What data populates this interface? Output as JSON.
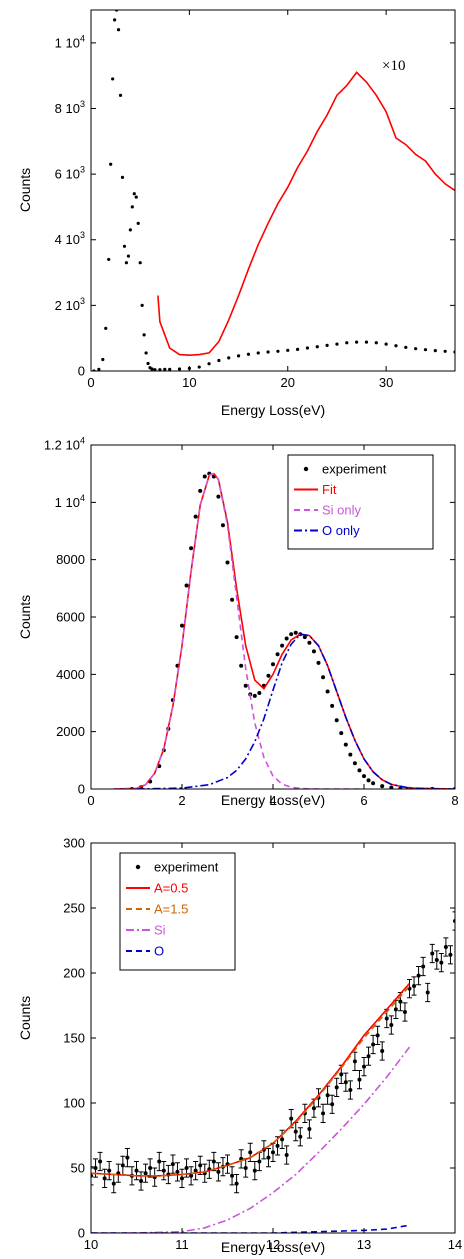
{
  "chart_data": [
    {
      "type": "line",
      "xlabel": "Energy Loss(eV)",
      "ylabel": "Counts",
      "xlim": [
        0,
        37
      ],
      "ylim": [
        0,
        11000
      ],
      "xticks": [
        "0",
        "10",
        "20",
        "30"
      ],
      "xtick_values": [
        0,
        10,
        20,
        30
      ],
      "yticks": [
        {
          "value": 0,
          "label": "0"
        },
        {
          "value": 2000,
          "label": "2 10",
          "exp": "3"
        },
        {
          "value": 4000,
          "label": "4 10",
          "exp": "3"
        },
        {
          "value": 6000,
          "label": "6 10",
          "exp": "3"
        },
        {
          "value": 8000,
          "label": "8 10",
          "exp": "3"
        },
        {
          "value": 10000,
          "label": "1 10",
          "exp": "4"
        }
      ],
      "annotation": "×10",
      "series": [
        {
          "style": "markers",
          "color": "#000000",
          "x": [
            0.3,
            0.8,
            1.2,
            1.5,
            1.8,
            2.0,
            2.2,
            2.4,
            2.6,
            2.8,
            3.0,
            3.2,
            3.4,
            3.6,
            3.8,
            4.0,
            4.2,
            4.4,
            4.6,
            4.8,
            5.0,
            5.2,
            5.4,
            5.6,
            5.8,
            6.0,
            6.2,
            6.5,
            7.0,
            7.5,
            8,
            9,
            10,
            11,
            12,
            13,
            14,
            15,
            16,
            17,
            18,
            19,
            20,
            21,
            22,
            23,
            24,
            25,
            26,
            27,
            28,
            29,
            30,
            31,
            32,
            33,
            34,
            35,
            36,
            37
          ],
          "y": [
            0,
            50,
            350,
            1300,
            3400,
            6300,
            8900,
            10700,
            11000,
            10400,
            8400,
            5900,
            3800,
            3300,
            3500,
            4300,
            5000,
            5400,
            5300,
            4500,
            3300,
            2000,
            1100,
            550,
            230,
            100,
            60,
            40,
            40,
            50,
            50,
            60,
            80,
            120,
            220,
            320,
            400,
            460,
            510,
            550,
            580,
            600,
            630,
            660,
            700,
            740,
            780,
            820,
            860,
            880,
            880,
            860,
            820,
            770,
            720,
            680,
            650,
            620,
            600,
            580
          ]
        },
        {
          "style": "line",
          "color": "#ff0000",
          "x": [
            6.8,
            7,
            8,
            9,
            10,
            11,
            12,
            13,
            14,
            15,
            16,
            17,
            18,
            19,
            20,
            21,
            22,
            23,
            24,
            25,
            26,
            27,
            28,
            29,
            30,
            31,
            32,
            33,
            34,
            35,
            36,
            37
          ],
          "y": [
            2300,
            1500,
            700,
            500,
            480,
            500,
            550,
            900,
            1550,
            2300,
            3100,
            3850,
            4500,
            5100,
            5600,
            6200,
            6700,
            7300,
            7800,
            8400,
            8700,
            9100,
            8800,
            8400,
            7900,
            7100,
            6900,
            6600,
            6400,
            6000,
            5700,
            5500
          ]
        }
      ]
    },
    {
      "type": "line",
      "xlabel": "Energy Loss(eV)",
      "ylabel": "Counts",
      "xlim": [
        0,
        8
      ],
      "ylim": [
        0,
        12000
      ],
      "xticks": [
        "0",
        "2",
        "4",
        "6",
        "8"
      ],
      "xtick_values": [
        0,
        2,
        4,
        6,
        8
      ],
      "yticks": [
        {
          "value": 0,
          "label": "0"
        },
        {
          "value": 2000,
          "label": "2000"
        },
        {
          "value": 4000,
          "label": "4000"
        },
        {
          "value": 6000,
          "label": "6000"
        },
        {
          "value": 8000,
          "label": "8000"
        },
        {
          "value": 10000,
          "label": "1 10",
          "exp": "4"
        },
        {
          "value": 12000,
          "label": "1.2 10",
          "exp": "4"
        }
      ],
      "legend": {
        "position": "top-right",
        "entries": [
          {
            "label": "experiment",
            "color": "#000000",
            "style": "dot"
          },
          {
            "label": "Fit",
            "color": "#ff0000",
            "style": "solid"
          },
          {
            "label": "Si only",
            "color": "#cc55dd",
            "style": "dash"
          },
          {
            "label": "O only",
            "color": "#0000cc",
            "style": "dashdot"
          }
        ]
      },
      "series": [
        {
          "name": "experiment",
          "style": "markers",
          "color": "#000000",
          "x": [
            0.9,
            1.1,
            1.3,
            1.5,
            1.6,
            1.7,
            1.8,
            1.9,
            2.0,
            2.1,
            2.2,
            2.3,
            2.4,
            2.5,
            2.6,
            2.7,
            2.8,
            2.9,
            3.0,
            3.1,
            3.2,
            3.3,
            3.4,
            3.5,
            3.6,
            3.7,
            3.8,
            3.9,
            4.0,
            4.1,
            4.2,
            4.3,
            4.4,
            4.5,
            4.6,
            4.7,
            4.8,
            4.9,
            5.0,
            5.1,
            5.2,
            5.3,
            5.4,
            5.5,
            5.6,
            5.7,
            5.8,
            5.9,
            6.0,
            6.1,
            6.2,
            6.4,
            6.6,
            6.8,
            7.0,
            7.5,
            8.0
          ],
          "y": [
            0,
            60,
            260,
            800,
            1350,
            2100,
            3100,
            4300,
            5700,
            7100,
            8400,
            9500,
            10400,
            10900,
            11000,
            10900,
            10200,
            9200,
            7900,
            6600,
            5300,
            4300,
            3600,
            3300,
            3250,
            3350,
            3600,
            3950,
            4350,
            4700,
            5000,
            5250,
            5400,
            5450,
            5400,
            5300,
            5100,
            4800,
            4400,
            3900,
            3400,
            2900,
            2400,
            1950,
            1550,
            1200,
            900,
            650,
            450,
            300,
            200,
            100,
            50,
            20,
            10,
            5,
            0
          ]
        },
        {
          "name": "Fit",
          "style": "line",
          "color": "#ff0000",
          "x": [
            0.5,
            1.0,
            1.2,
            1.4,
            1.6,
            1.8,
            2.0,
            2.2,
            2.4,
            2.6,
            2.7,
            2.8,
            3.0,
            3.2,
            3.4,
            3.6,
            3.8,
            4.0,
            4.2,
            4.4,
            4.6,
            4.8,
            5.0,
            5.2,
            5.4,
            5.6,
            5.8,
            6.0,
            6.2,
            6.4,
            6.6,
            7.0,
            8.0
          ],
          "y": [
            0,
            20,
            150,
            550,
            1400,
            2900,
            5000,
            7600,
            9900,
            10950,
            11000,
            10800,
            9300,
            7000,
            5000,
            3800,
            3500,
            4000,
            4700,
            5200,
            5400,
            5350,
            5000,
            4300,
            3400,
            2500,
            1700,
            1050,
            600,
            320,
            160,
            30,
            0
          ]
        },
        {
          "name": "Si only",
          "style": "dash",
          "color": "#cc55dd",
          "x": [
            0.5,
            1.0,
            1.2,
            1.4,
            1.6,
            1.8,
            2.0,
            2.2,
            2.4,
            2.6,
            2.7,
            2.8,
            3.0,
            3.2,
            3.4,
            3.6,
            3.8,
            4.0,
            4.2,
            4.4,
            4.6,
            4.8,
            5.0,
            5.5,
            6.0
          ],
          "y": [
            0,
            20,
            150,
            550,
            1400,
            2900,
            5000,
            7600,
            9900,
            10950,
            11000,
            10800,
            9200,
            6700,
            4200,
            2300,
            1100,
            450,
            170,
            60,
            20,
            5,
            0,
            0,
            0
          ]
        },
        {
          "name": "O only",
          "style": "dashdot",
          "color": "#0000cc",
          "x": [
            1.0,
            2.0,
            2.6,
            3.0,
            3.2,
            3.4,
            3.6,
            3.8,
            4.0,
            4.2,
            4.4,
            4.6,
            4.8,
            5.0,
            5.2,
            5.4,
            5.6,
            5.8,
            6.0,
            6.2,
            6.4,
            6.6,
            7.0,
            7.5,
            8.0
          ],
          "y": [
            0,
            30,
            150,
            400,
            650,
            1050,
            1650,
            2450,
            3450,
            4400,
            5050,
            5400,
            5350,
            5000,
            4300,
            3400,
            2500,
            1700,
            1050,
            600,
            320,
            160,
            30,
            5,
            0
          ]
        }
      ]
    },
    {
      "type": "scatter",
      "xlabel": "Energy Loss(eV)",
      "ylabel": "Counts",
      "xlim": [
        10,
        14
      ],
      "ylim": [
        0,
        300
      ],
      "xticks": [
        "10",
        "11",
        "12",
        "13",
        "14"
      ],
      "xtick_values": [
        10,
        11,
        12,
        13,
        14
      ],
      "yticks": [
        {
          "value": 0,
          "label": "0"
        },
        {
          "value": 50,
          "label": "50"
        },
        {
          "value": 100,
          "label": "100"
        },
        {
          "value": 150,
          "label": "150"
        },
        {
          "value": 200,
          "label": "200"
        },
        {
          "value": 250,
          "label": "250"
        },
        {
          "value": 300,
          "label": "300"
        }
      ],
      "legend": {
        "position": "top-left",
        "entries": [
          {
            "label": "experiment",
            "color": "#000000",
            "style": "dot"
          },
          {
            "label": "A=0.5",
            "color": "#ff0000",
            "style": "solid"
          },
          {
            "label": "A=1.5",
            "color": "#cc6600",
            "style": "dash"
          },
          {
            "label": "Si",
            "color": "#cc55dd",
            "style": "dashdot"
          },
          {
            "label": "O",
            "color": "#0000cc",
            "style": "dash"
          }
        ]
      },
      "series": [
        {
          "name": "experiment",
          "style": "errorbars",
          "color": "#000000",
          "error": 7,
          "x": [
            10.0,
            10.05,
            10.1,
            10.15,
            10.2,
            10.25,
            10.3,
            10.35,
            10.4,
            10.45,
            10.5,
            10.55,
            10.6,
            10.65,
            10.7,
            10.75,
            10.8,
            10.85,
            10.9,
            10.95,
            11.0,
            11.05,
            11.1,
            11.15,
            11.2,
            11.25,
            11.3,
            11.35,
            11.4,
            11.45,
            11.5,
            11.55,
            11.6,
            11.65,
            11.7,
            11.75,
            11.8,
            11.85,
            11.9,
            11.95,
            12.0,
            12.05,
            12.1,
            12.15,
            12.2,
            12.25,
            12.3,
            12.35,
            12.4,
            12.45,
            12.5,
            12.55,
            12.6,
            12.65,
            12.7,
            12.75,
            12.8,
            12.85,
            12.9,
            12.95,
            13.0,
            13.05,
            13.1,
            13.15,
            13.2,
            13.25,
            13.3,
            13.35,
            13.4,
            13.45,
            13.5,
            13.55,
            13.6,
            13.65,
            13.7,
            13.75,
            13.8,
            13.85,
            13.9,
            13.95,
            14.0
          ],
          "y": [
            44,
            50,
            55,
            42,
            48,
            38,
            46,
            52,
            58,
            44,
            48,
            40,
            46,
            50,
            43,
            55,
            48,
            45,
            53,
            47,
            42,
            50,
            44,
            48,
            52,
            46,
            49,
            55,
            47,
            51,
            53,
            44,
            38,
            57,
            50,
            62,
            48,
            55,
            64,
            58,
            62,
            67,
            72,
            60,
            88,
            78,
            74,
            92,
            80,
            96,
            104,
            92,
            106,
            99,
            112,
            122,
            116,
            110,
            132,
            118,
            128,
            136,
            145,
            152,
            140,
            165,
            160,
            172,
            178,
            170,
            188,
            190,
            198,
            205,
            185,
            215,
            210,
            208,
            220,
            214,
            240
          ]
        },
        {
          "name": "A=0.5",
          "style": "solid",
          "color": "#ff0000",
          "x": [
            10,
            10.25,
            10.5,
            10.75,
            11.0,
            11.25,
            11.5,
            11.75,
            12.0,
            12.25,
            12.5,
            12.75,
            13.0,
            13.25,
            13.5
          ],
          "y": [
            46,
            45,
            44,
            44,
            45,
            47,
            52,
            58,
            69,
            86,
            106,
            128,
            152,
            172,
            192
          ]
        },
        {
          "name": "A=1.5",
          "style": "dash",
          "color": "#cc6600",
          "x": [
            10,
            10.25,
            10.5,
            10.75,
            11.0,
            11.25,
            11.5,
            11.75,
            12.0,
            12.25,
            12.5,
            12.75,
            13.0,
            13.25,
            13.5
          ],
          "y": [
            46,
            45,
            44,
            44,
            45,
            47,
            52,
            58,
            69,
            85,
            105,
            127,
            150,
            170,
            190
          ]
        },
        {
          "name": "Si",
          "style": "dashdot",
          "color": "#cc55dd",
          "x": [
            10,
            10.5,
            11.0,
            11.25,
            11.5,
            11.75,
            12.0,
            12.25,
            12.5,
            12.75,
            13.0,
            13.25,
            13.5
          ],
          "y": [
            0,
            0,
            1,
            4,
            10,
            19,
            31,
            45,
            62,
            80,
            99,
            120,
            143
          ]
        },
        {
          "name": "O",
          "style": "dash",
          "color": "#0000cc",
          "x": [
            10,
            11,
            12,
            12.5,
            13.0,
            13.25,
            13.5
          ],
          "y": [
            0,
            0,
            0,
            1,
            2,
            3,
            6
          ]
        }
      ]
    }
  ]
}
